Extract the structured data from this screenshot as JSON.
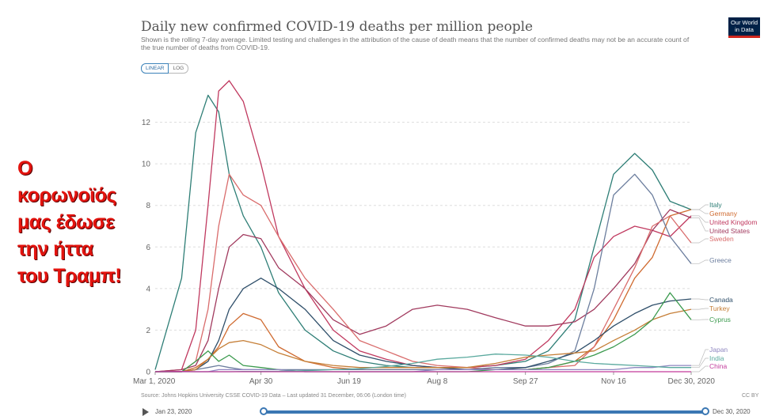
{
  "overlay_text": [
    "Ο",
    "κορωνοϊός",
    "μας έδωσε",
    "την ήττα",
    "του Τραμπ!"
  ],
  "logo": {
    "line1": "Our World",
    "line2": "in Data"
  },
  "scale_toggle": {
    "linear": "LINEAR",
    "log": "LOG"
  },
  "source": "Source: Johns Hopkins University CSSE COVID-19 Data – Last updated 31 December, 06:06 (London time)",
  "license": "CC BY",
  "timeline": {
    "start": "Jan 23, 2020",
    "end": "Dec 30, 2020"
  },
  "chart_data": {
    "type": "line",
    "title": "Daily new confirmed COVID-19 deaths per million people",
    "subtitle": "Shown is the rolling 7-day average. Limited testing and challenges in the attribution of the cause of death means that the number of confirmed deaths may not be an accurate count of the true number of deaths from COVID-19.",
    "xlabel": "",
    "ylabel": "",
    "x_ticks": [
      "Mar 1, 2020",
      "Apr 30",
      "Jun 19",
      "Aug 8",
      "Sep 27",
      "Nov 16",
      "Dec 30, 2020"
    ],
    "y_ticks": [
      0,
      2,
      4,
      6,
      8,
      10,
      12
    ],
    "ylim": [
      0,
      14
    ],
    "grid": true,
    "legend": "right, inline labels",
    "x": [
      "2020-03-01",
      "2020-03-16",
      "2020-03-24",
      "2020-03-31",
      "2020-04-06",
      "2020-04-12",
      "2020-04-20",
      "2020-04-30",
      "2020-05-10",
      "2020-05-25",
      "2020-06-10",
      "2020-06-25",
      "2020-07-10",
      "2020-07-25",
      "2020-08-08",
      "2020-08-25",
      "2020-09-10",
      "2020-09-27",
      "2020-10-10",
      "2020-10-25",
      "2020-11-05",
      "2020-11-16",
      "2020-11-28",
      "2020-12-08",
      "2020-12-18",
      "2020-12-30"
    ],
    "series": [
      {
        "name": "Italy",
        "color": "#2e7e76",
        "values": [
          0.1,
          4.5,
          11.5,
          13.3,
          12.5,
          9.5,
          7.5,
          6.0,
          3.8,
          2.0,
          1.0,
          0.5,
          0.3,
          0.2,
          0.2,
          0.2,
          0.3,
          0.5,
          1.0,
          2.5,
          6.0,
          9.5,
          10.5,
          9.7,
          8.2,
          7.8
        ]
      },
      {
        "name": "Germany",
        "color": "#cf6a2f",
        "values": [
          0,
          0,
          0.2,
          0.6,
          1.2,
          2.2,
          2.8,
          2.5,
          1.2,
          0.5,
          0.2,
          0.1,
          0.1,
          0.1,
          0.1,
          0.1,
          0.1,
          0.1,
          0.2,
          0.5,
          1.2,
          2.5,
          4.5,
          5.5,
          7.5,
          7.8
        ]
      },
      {
        "name": "United Kingdom",
        "color": "#c0395f",
        "values": [
          0,
          0.1,
          2.0,
          8.0,
          13.5,
          14.0,
          13.0,
          10.0,
          6.5,
          4.0,
          2.0,
          1.0,
          0.6,
          0.3,
          0.2,
          0.2,
          0.3,
          0.6,
          1.5,
          3.0,
          5.5,
          6.5,
          7.0,
          6.8,
          6.5,
          7.5
        ]
      },
      {
        "name": "United States",
        "color": "#a13a5e",
        "values": [
          0,
          0.1,
          0.3,
          1.5,
          4.0,
          6.0,
          6.6,
          6.4,
          5.0,
          4.0,
          2.5,
          1.8,
          2.2,
          3.0,
          3.2,
          3.0,
          2.6,
          2.2,
          2.2,
          2.4,
          3.0,
          4.0,
          5.2,
          6.8,
          7.8,
          7.4
        ]
      },
      {
        "name": "Sweden",
        "color": "#d96c6c",
        "values": [
          0,
          0,
          0.5,
          3.0,
          7.0,
          9.5,
          8.5,
          8.0,
          6.5,
          4.5,
          3.0,
          1.5,
          1.0,
          0.5,
          0.3,
          0.2,
          0.1,
          0.1,
          0.2,
          0.3,
          1.2,
          3.0,
          5.0,
          7.0,
          7.5,
          6.2
        ]
      },
      {
        "name": "Greece",
        "color": "#6c7e9e",
        "values": [
          0,
          0,
          0.1,
          0.2,
          0.3,
          0.2,
          0.1,
          0.1,
          0.1,
          0.1,
          0.1,
          0.1,
          0.1,
          0.1,
          0.1,
          0.1,
          0.2,
          0.2,
          0.4,
          1.0,
          4.0,
          8.5,
          9.5,
          8.5,
          6.5,
          5.2
        ]
      },
      {
        "name": "Canada",
        "color": "#2f4f6a",
        "values": [
          0,
          0,
          0.1,
          0.5,
          1.5,
          3.0,
          4.0,
          4.5,
          4.0,
          3.0,
          1.5,
          0.8,
          0.5,
          0.3,
          0.2,
          0.1,
          0.1,
          0.2,
          0.5,
          0.9,
          1.5,
          2.2,
          2.8,
          3.2,
          3.4,
          3.5
        ]
      },
      {
        "name": "Turkey",
        "color": "#c57e36",
        "values": [
          0,
          0,
          0.1,
          0.6,
          1.1,
          1.4,
          1.5,
          1.3,
          0.9,
          0.5,
          0.3,
          0.2,
          0.2,
          0.2,
          0.2,
          0.2,
          0.4,
          0.7,
          0.8,
          0.9,
          1.0,
          1.5,
          2.0,
          2.5,
          2.8,
          3.0
        ]
      },
      {
        "name": "Cyprus",
        "color": "#3b9a4e",
        "values": [
          0,
          0,
          0.5,
          1.0,
          0.5,
          0.8,
          0.3,
          0.2,
          0.1,
          0,
          0,
          0,
          0,
          0,
          0,
          0,
          0.1,
          0.1,
          0.2,
          0.5,
          0.8,
          1.2,
          1.8,
          2.5,
          3.8,
          2.5
        ]
      },
      {
        "name": "Japan",
        "color": "#8e86c0",
        "values": [
          0,
          0,
          0,
          0,
          0.1,
          0.1,
          0.1,
          0.1,
          0.1,
          0,
          0,
          0,
          0,
          0,
          0.1,
          0.1,
          0.1,
          0.1,
          0.1,
          0.1,
          0.1,
          0.1,
          0.2,
          0.2,
          0.3,
          0.3
        ]
      },
      {
        "name": "India",
        "color": "#5aa99e",
        "values": [
          0,
          0,
          0,
          0,
          0,
          0,
          0.01,
          0.01,
          0.02,
          0.05,
          0.1,
          0.15,
          0.25,
          0.4,
          0.6,
          0.7,
          0.85,
          0.8,
          0.7,
          0.5,
          0.4,
          0.35,
          0.3,
          0.25,
          0.2,
          0.2
        ]
      },
      {
        "name": "China",
        "color": "#c23b9b",
        "values": [
          0,
          0.01,
          0,
          0,
          0,
          0,
          0,
          0,
          0,
          0,
          0,
          0,
          0,
          0,
          0,
          0,
          0,
          0,
          0,
          0,
          0,
          0,
          0,
          0,
          0,
          0
        ]
      }
    ]
  }
}
